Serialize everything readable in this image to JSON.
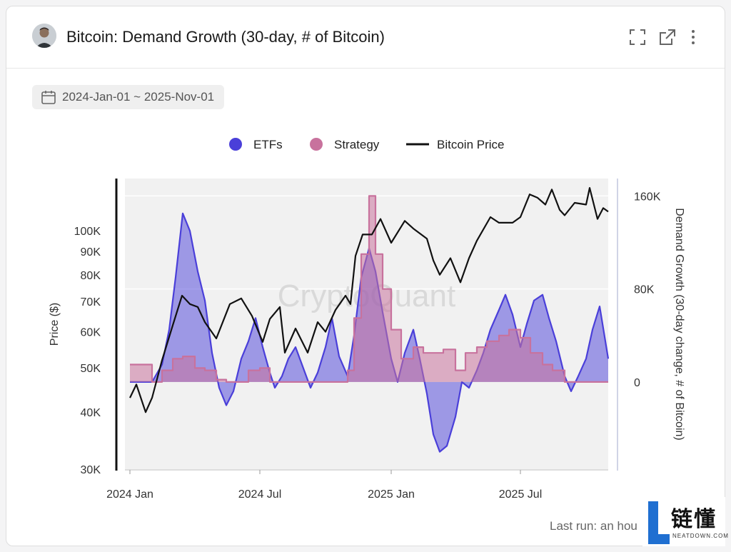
{
  "header": {
    "title": "Bitcoin: Demand Growth (30-day, # of Bitcoin)",
    "icons": [
      "fullscreen-icon",
      "external-link-icon",
      "more-vertical-icon"
    ]
  },
  "date_range": {
    "label": "2024-Jan-01 ~ 2025-Nov-01"
  },
  "watermark": "CryptoQuant",
  "footer": {
    "last_run": "Last run: an hou"
  },
  "logo": {
    "text": "链懂",
    "sub": "NEATDOWN.COM"
  },
  "colors": {
    "etfs": "#4a3fd9",
    "strategy": "#c8729d",
    "price": "#111111"
  },
  "chart_data": {
    "type": "line",
    "legend": [
      "ETFs",
      "Strategy",
      "Bitcoin Price"
    ],
    "legend_position": "top-center",
    "x_ticks": [
      "2024 Jan",
      "2024 Jul",
      "2025 Jan",
      "2025 Jul"
    ],
    "y_left": {
      "label": "Price ($)",
      "scale": "log",
      "range": [
        30000,
        130000
      ],
      "ticks": [
        "30K",
        "40K",
        "50K",
        "60K",
        "70K",
        "80K",
        "90K",
        "100K"
      ]
    },
    "y_right": {
      "label": "Demand Growth (30-day change, # of Bitcoin)",
      "range": [
        -75000,
        175000
      ],
      "ticks": [
        "0",
        "80K",
        "160K"
      ]
    },
    "series": [
      {
        "name": "ETFs",
        "axis": "right",
        "kind": "area",
        "x": [
          "2024-01-01",
          "2024-01-15",
          "2024-02-01",
          "2024-02-15",
          "2024-02-25",
          "2024-03-05",
          "2024-03-15",
          "2024-03-25",
          "2024-04-05",
          "2024-04-15",
          "2024-04-25",
          "2024-05-05",
          "2024-05-15",
          "2024-05-25",
          "2024-06-05",
          "2024-06-15",
          "2024-06-25",
          "2024-07-05",
          "2024-07-15",
          "2024-07-22",
          "2024-08-01",
          "2024-08-10",
          "2024-08-20",
          "2024-09-01",
          "2024-09-10",
          "2024-09-20",
          "2024-10-01",
          "2024-10-10",
          "2024-10-20",
          "2024-11-01",
          "2024-11-10",
          "2024-11-20",
          "2024-12-01",
          "2024-12-10",
          "2024-12-20",
          "2025-01-01",
          "2025-01-10",
          "2025-01-20",
          "2025-02-01",
          "2025-02-10",
          "2025-02-20",
          "2025-03-01",
          "2025-03-10",
          "2025-03-20",
          "2025-04-01",
          "2025-04-10",
          "2025-04-20",
          "2025-05-01",
          "2025-05-10",
          "2025-05-20",
          "2025-06-01",
          "2025-06-10",
          "2025-06-20",
          "2025-07-01",
          "2025-07-10",
          "2025-07-20",
          "2025-08-01",
          "2025-08-10",
          "2025-08-20",
          "2025-09-01",
          "2025-09-10",
          "2025-09-20",
          "2025-10-01",
          "2025-10-10",
          "2025-10-20",
          "2025-11-01"
        ],
        "values": [
          0,
          0,
          0,
          15000,
          45000,
          90000,
          145000,
          130000,
          95000,
          70000,
          25000,
          -5000,
          -20000,
          -8000,
          20000,
          35000,
          55000,
          30000,
          8000,
          -5000,
          5000,
          20000,
          30000,
          10000,
          -5000,
          8000,
          30000,
          55000,
          22000,
          5000,
          40000,
          90000,
          115000,
          95000,
          60000,
          20000,
          0,
          25000,
          45000,
          20000,
          -10000,
          -45000,
          -60000,
          -55000,
          -30000,
          0,
          -5000,
          10000,
          25000,
          45000,
          62000,
          75000,
          58000,
          30000,
          50000,
          70000,
          75000,
          55000,
          35000,
          5000,
          -8000,
          5000,
          20000,
          45000,
          65000,
          20000
        ]
      },
      {
        "name": "Strategy",
        "axis": "right",
        "kind": "area",
        "x": [
          "2024-01-01",
          "2024-01-15",
          "2024-02-01",
          "2024-02-15",
          "2024-03-01",
          "2024-03-15",
          "2024-04-01",
          "2024-04-15",
          "2024-05-01",
          "2024-05-15",
          "2024-06-01",
          "2024-06-15",
          "2024-07-01",
          "2024-07-15",
          "2024-08-01",
          "2024-08-15",
          "2024-09-01",
          "2024-09-15",
          "2024-10-01",
          "2024-10-15",
          "2024-11-01",
          "2024-11-10",
          "2024-11-20",
          "2024-12-01",
          "2024-12-10",
          "2024-12-20",
          "2025-01-01",
          "2025-01-15",
          "2025-02-01",
          "2025-02-15",
          "2025-03-01",
          "2025-03-15",
          "2025-04-01",
          "2025-04-15",
          "2025-05-01",
          "2025-05-15",
          "2025-06-01",
          "2025-06-15",
          "2025-07-01",
          "2025-07-15",
          "2025-08-01",
          "2025-08-15",
          "2025-09-01",
          "2025-09-15",
          "2025-10-01",
          "2025-10-15",
          "2025-11-01"
        ],
        "values": [
          15000,
          15000,
          0,
          10000,
          20000,
          22000,
          12000,
          10000,
          2000,
          0,
          0,
          10000,
          12000,
          0,
          0,
          0,
          0,
          0,
          0,
          0,
          10000,
          55000,
          110000,
          160000,
          110000,
          80000,
          45000,
          20000,
          30000,
          25000,
          25000,
          28000,
          10000,
          25000,
          30000,
          35000,
          40000,
          45000,
          38000,
          25000,
          15000,
          10000,
          0,
          0,
          0,
          0,
          0
        ]
      },
      {
        "name": "Bitcoin Price",
        "axis": "left",
        "kind": "line",
        "x": [
          "2024-01-01",
          "2024-01-10",
          "2024-01-23",
          "2024-02-01",
          "2024-02-15",
          "2024-03-01",
          "2024-03-14",
          "2024-03-25",
          "2024-04-05",
          "2024-04-15",
          "2024-05-01",
          "2024-05-20",
          "2024-06-05",
          "2024-06-20",
          "2024-07-05",
          "2024-07-15",
          "2024-07-29",
          "2024-08-05",
          "2024-08-20",
          "2024-09-06",
          "2024-09-20",
          "2024-10-01",
          "2024-10-15",
          "2024-10-29",
          "2024-11-05",
          "2024-11-12",
          "2024-11-22",
          "2024-12-05",
          "2024-12-17",
          "2025-01-01",
          "2025-01-20",
          "2025-02-01",
          "2025-02-20",
          "2025-03-01",
          "2025-03-10",
          "2025-03-25",
          "2025-04-08",
          "2025-04-20",
          "2025-05-01",
          "2025-05-20",
          "2025-06-01",
          "2025-06-20",
          "2025-07-01",
          "2025-07-14",
          "2025-07-25",
          "2025-08-05",
          "2025-08-14",
          "2025-08-25",
          "2025-09-01",
          "2025-09-15",
          "2025-10-01",
          "2025-10-06",
          "2025-10-17",
          "2025-10-25",
          "2025-11-01"
        ],
        "values": [
          43000,
          46000,
          40000,
          43000,
          52000,
          62000,
          72000,
          69000,
          68000,
          63000,
          58000,
          69000,
          71000,
          65000,
          57000,
          64000,
          68000,
          54000,
          61000,
          54000,
          63000,
          60000,
          67000,
          72000,
          69000,
          88000,
          98000,
          98000,
          106000,
          94000,
          105000,
          101000,
          96000,
          86000,
          80000,
          87000,
          77000,
          87000,
          95000,
          107000,
          104000,
          104000,
          107000,
          120000,
          118000,
          114000,
          123000,
          111000,
          108000,
          115000,
          114000,
          124000,
          106000,
          112000,
          110000
        ]
      }
    ]
  }
}
